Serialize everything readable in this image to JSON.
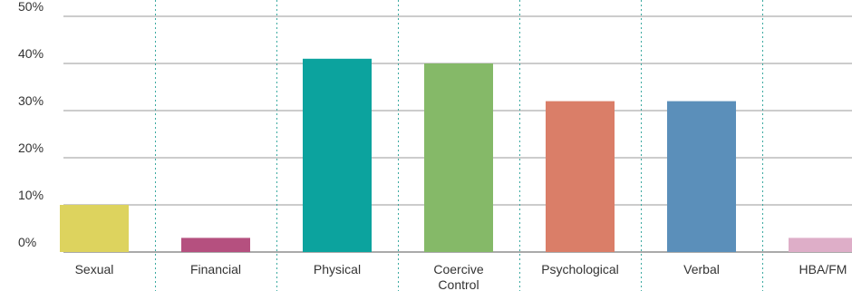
{
  "chart_data": {
    "type": "bar",
    "categories": [
      "Sexual",
      "Financial",
      "Physical",
      "Coercive\nControl",
      "Psychological",
      "Verbal",
      "HBA/FM"
    ],
    "values": [
      10,
      3,
      41,
      40,
      32,
      32,
      3
    ],
    "colors": [
      "#ddd35e",
      "#b5507f",
      "#0ca39e",
      "#85b968",
      "#da7e68",
      "#5b8fba",
      "#deaec8"
    ],
    "yticks": [
      "0%",
      "10%",
      "20%",
      "30%",
      "40%",
      "50%"
    ],
    "ylim": [
      0,
      50
    ],
    "grid": true,
    "title": "",
    "xlabel": "",
    "ylabel": ""
  }
}
